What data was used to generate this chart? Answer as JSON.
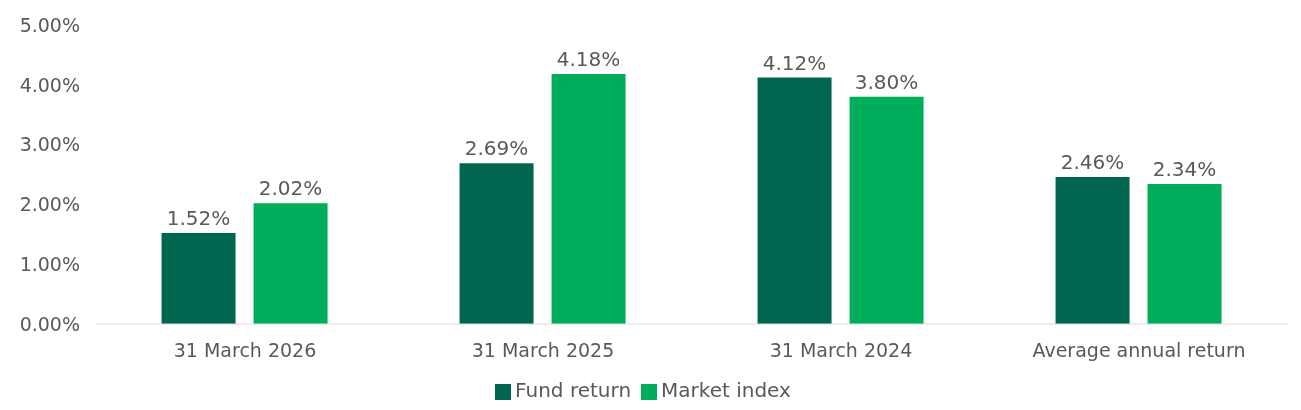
{
  "chart_data": {
    "type": "bar",
    "categories": [
      "31 March 2026",
      "31 March 2025",
      "31 March 2024",
      "Average annual return"
    ],
    "series": [
      {
        "name": "Fund return",
        "color": "#00664f",
        "values": [
          1.52,
          2.69,
          4.12,
          2.46
        ],
        "value_labels": [
          "1.52%",
          "2.69%",
          "4.12%",
          "2.46%"
        ]
      },
      {
        "name": "Market index",
        "color": "#00ad5b",
        "values": [
          2.02,
          4.18,
          3.8,
          2.34
        ],
        "value_labels": [
          "2.02%",
          "4.18%",
          "3.80%",
          "2.34%"
        ]
      }
    ],
    "ylim": [
      0,
      5
    ],
    "yticks": [
      {
        "value": 0,
        "label": "0.00%"
      },
      {
        "value": 1,
        "label": "1.00%"
      },
      {
        "value": 2,
        "label": "2.00%"
      },
      {
        "value": 3,
        "label": "3.00%"
      },
      {
        "value": 4,
        "label": "4.00%"
      },
      {
        "value": 5,
        "label": "5.00%"
      }
    ],
    "grid": false,
    "legend": "bottom"
  }
}
